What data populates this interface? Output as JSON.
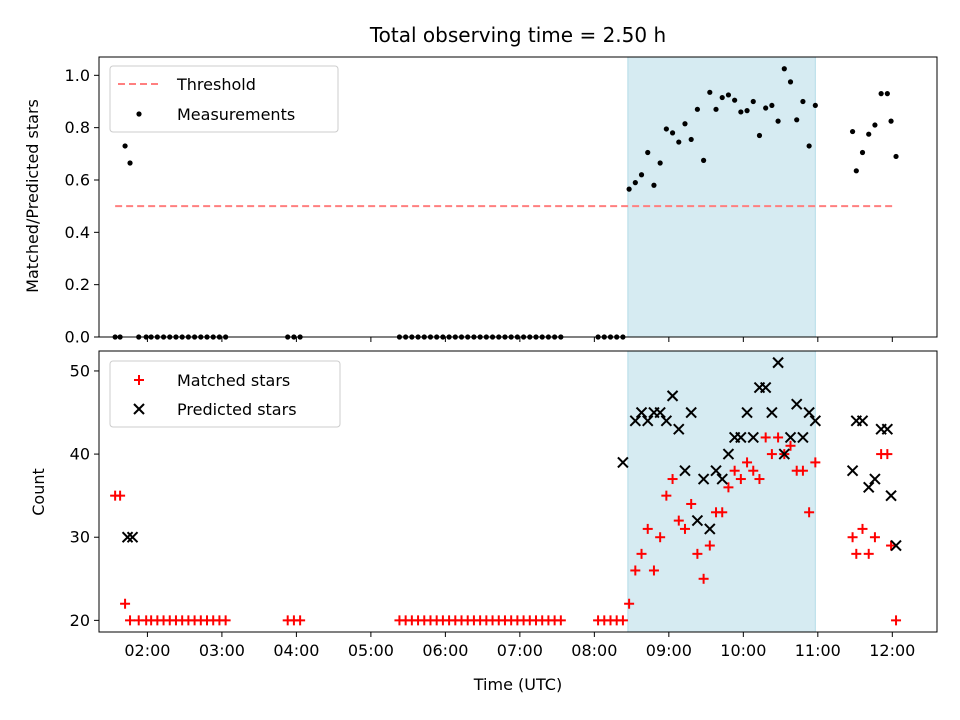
{
  "figure": {
    "title": "Total observing time = 2.50 h",
    "xlabel": "Time (UTC)"
  },
  "chart_data": [
    {
      "type": "scatter",
      "panel": "top",
      "ylabel": "Matched/Predicted stars",
      "xlim": [
        "01:21",
        "12:36"
      ],
      "ylim": [
        0,
        1.07
      ],
      "yticks": [
        "0.0",
        "0.2",
        "0.4",
        "0.6",
        "0.8",
        "1.0"
      ],
      "xticks": [
        "02:00",
        "03:00",
        "04:00",
        "05:00",
        "06:00",
        "07:00",
        "08:00",
        "09:00",
        "10:00",
        "11:00",
        "12:00"
      ],
      "highlight_span": {
        "start": "08:27",
        "end": "10:58",
        "color": "#add8e6"
      },
      "threshold": {
        "name": "Threshold",
        "y": 0.5,
        "x_start": "01:34",
        "x_end": "12:00",
        "color": "#ff7f7f"
      },
      "legend": {
        "placement": "upper-left",
        "entries": [
          "Threshold",
          "Measurements"
        ]
      },
      "series": [
        {
          "name": "Measurements",
          "color": "#000000",
          "x": [
            "01:34",
            "01:38",
            "01:42",
            "01:46",
            "01:53",
            "01:59",
            "02:03",
            "02:08",
            "02:13",
            "02:18",
            "02:23",
            "02:28",
            "02:33",
            "02:38",
            "02:43",
            "02:48",
            "02:53",
            "02:58",
            "03:03",
            "03:53",
            "03:58",
            "04:03",
            "05:23",
            "05:28",
            "05:33",
            "05:38",
            "05:43",
            "05:48",
            "05:53",
            "05:58",
            "06:03",
            "06:08",
            "06:13",
            "06:18",
            "06:23",
            "06:28",
            "06:33",
            "06:38",
            "06:43",
            "06:48",
            "06:53",
            "06:58",
            "07:03",
            "07:08",
            "07:13",
            "07:18",
            "07:23",
            "07:28",
            "07:33",
            "08:03",
            "08:08",
            "08:13",
            "08:18",
            "08:23",
            "08:28",
            "08:33",
            "08:38",
            "08:43",
            "08:48",
            "08:53",
            "08:58",
            "09:03",
            "09:08",
            "09:13",
            "09:18",
            "09:23",
            "09:28",
            "09:33",
            "09:38",
            "09:43",
            "09:48",
            "09:53",
            "09:58",
            "10:03",
            "10:08",
            "10:13",
            "10:18",
            "10:23",
            "10:28",
            "10:33",
            "10:38",
            "10:43",
            "10:48",
            "10:53",
            "10:58",
            "11:28",
            "11:31",
            "11:36",
            "11:41",
            "11:46",
            "11:51",
            "11:56",
            "11:59",
            "12:03"
          ],
          "y": [
            0,
            0,
            0.73,
            0.665,
            0,
            0,
            0,
            0,
            0,
            0,
            0,
            0,
            0,
            0,
            0,
            0,
            0,
            0,
            0,
            0,
            0,
            0,
            0,
            0,
            0,
            0,
            0,
            0,
            0,
            0,
            0,
            0,
            0,
            0,
            0,
            0,
            0,
            0,
            0,
            0,
            0,
            0,
            0,
            0,
            0,
            0,
            0,
            0,
            0,
            0,
            0,
            0,
            0,
            0,
            0.565,
            0.59,
            0.62,
            0.705,
            0.58,
            0.665,
            0.795,
            0.78,
            0.745,
            0.815,
            0.755,
            0.87,
            0.675,
            0.935,
            0.87,
            0.915,
            0.925,
            0.905,
            0.86,
            0.865,
            0.9,
            0.77,
            0.875,
            0.885,
            0.825,
            1.025,
            0.975,
            0.83,
            0.9,
            0.73,
            0.885,
            0.785,
            0.635,
            0.705,
            0.775,
            0.81,
            0.93,
            0.93,
            0.825,
            0.69
          ]
        }
      ]
    },
    {
      "type": "scatter",
      "panel": "bottom",
      "ylabel": "Count",
      "xlabel": "Time (UTC)",
      "xlim": [
        "01:21",
        "12:36"
      ],
      "ylim": [
        18.6,
        52.4
      ],
      "yticks": [
        "20",
        "30",
        "40",
        "50"
      ],
      "xticks": [
        "02:00",
        "03:00",
        "04:00",
        "05:00",
        "06:00",
        "07:00",
        "08:00",
        "09:00",
        "10:00",
        "11:00",
        "12:00"
      ],
      "highlight_span": {
        "start": "08:27",
        "end": "10:58",
        "color": "#add8e6"
      },
      "legend": {
        "placement": "upper-left",
        "entries": [
          "Matched stars",
          "Predicted stars"
        ]
      },
      "series": [
        {
          "name": "Matched stars",
          "marker": "plus",
          "color": "#ff0000",
          "x": [
            "01:34",
            "01:38",
            "01:42",
            "01:46",
            "01:53",
            "01:59",
            "02:03",
            "02:08",
            "02:13",
            "02:18",
            "02:23",
            "02:28",
            "02:33",
            "02:38",
            "02:43",
            "02:48",
            "02:53",
            "02:58",
            "03:03",
            "03:53",
            "03:58",
            "04:03",
            "05:23",
            "05:28",
            "05:33",
            "05:38",
            "05:43",
            "05:48",
            "05:53",
            "05:58",
            "06:03",
            "06:08",
            "06:13",
            "06:18",
            "06:23",
            "06:28",
            "06:33",
            "06:38",
            "06:43",
            "06:48",
            "06:53",
            "06:58",
            "07:03",
            "07:08",
            "07:13",
            "07:18",
            "07:23",
            "07:28",
            "07:33",
            "08:03",
            "08:08",
            "08:13",
            "08:18",
            "08:23",
            "08:28",
            "08:33",
            "08:38",
            "08:43",
            "08:48",
            "08:53",
            "08:58",
            "09:03",
            "09:08",
            "09:13",
            "09:18",
            "09:23",
            "09:28",
            "09:33",
            "09:38",
            "09:43",
            "09:48",
            "09:53",
            "09:58",
            "10:03",
            "10:08",
            "10:13",
            "10:18",
            "10:23",
            "10:28",
            "10:33",
            "10:38",
            "10:43",
            "10:48",
            "10:53",
            "10:58",
            "11:28",
            "11:31",
            "11:36",
            "11:41",
            "11:46",
            "11:51",
            "11:56",
            "11:59",
            "12:03"
          ],
          "y": [
            35,
            35,
            22,
            20,
            20,
            20,
            20,
            20,
            20,
            20,
            20,
            20,
            20,
            20,
            20,
            20,
            20,
            20,
            20,
            20,
            20,
            20,
            20,
            20,
            20,
            20,
            20,
            20,
            20,
            20,
            20,
            20,
            20,
            20,
            20,
            20,
            20,
            20,
            20,
            20,
            20,
            20,
            20,
            20,
            20,
            20,
            20,
            20,
            20,
            20,
            20,
            20,
            20,
            20,
            22,
            26,
            28,
            31,
            26,
            30,
            35,
            37,
            32,
            31,
            34,
            28,
            25,
            29,
            33,
            33,
            36,
            38,
            37,
            39,
            38,
            37,
            42,
            40,
            42,
            40,
            41,
            38,
            38,
            33,
            39,
            30,
            28,
            31,
            28,
            30,
            40,
            40,
            29,
            20
          ]
        },
        {
          "name": "Predicted stars",
          "marker": "x",
          "color": "#000000",
          "x": [
            "01:44",
            "01:48",
            "08:23",
            "08:33",
            "08:38",
            "08:43",
            "08:48",
            "08:53",
            "08:58",
            "09:03",
            "09:08",
            "09:13",
            "09:18",
            "09:23",
            "09:28",
            "09:33",
            "09:38",
            "09:43",
            "09:48",
            "09:53",
            "09:58",
            "10:03",
            "10:08",
            "10:13",
            "10:18",
            "10:23",
            "10:28",
            "10:33",
            "10:38",
            "10:43",
            "10:48",
            "10:53",
            "10:58",
            "11:28",
            "11:31",
            "11:36",
            "11:41",
            "11:46",
            "11:51",
            "11:56",
            "11:59",
            "12:03"
          ],
          "y": [
            30,
            30,
            39,
            44,
            45,
            44,
            45,
            45,
            44,
            47,
            43,
            38,
            45,
            32,
            37,
            31,
            38,
            37,
            40,
            42,
            42,
            45,
            42,
            48,
            48,
            45,
            51,
            40,
            42,
            46,
            42,
            45,
            44,
            38,
            44,
            44,
            36,
            37,
            43,
            43,
            35,
            29
          ]
        }
      ]
    }
  ]
}
